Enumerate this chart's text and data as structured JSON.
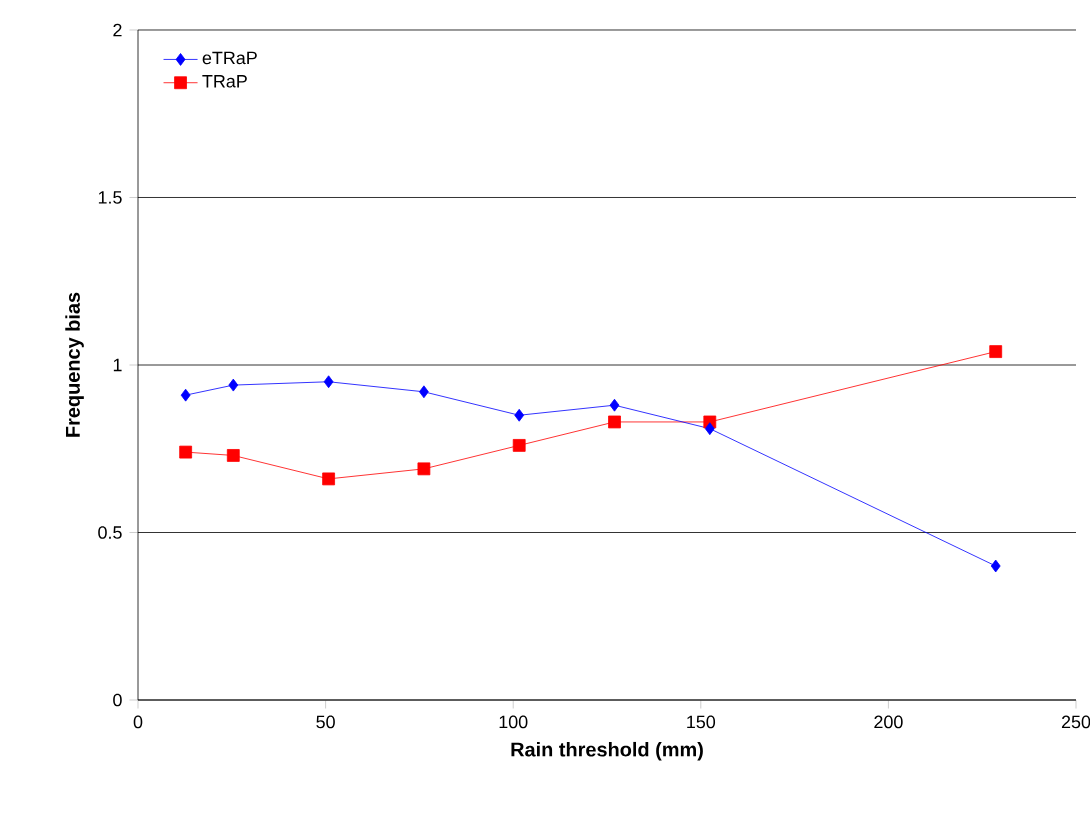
{
  "chart_data": {
    "type": "line",
    "xlabel": "Rain threshold (mm)",
    "ylabel": "Frequency bias",
    "x": [
      12.7,
      25.4,
      50.8,
      76.2,
      101.6,
      127,
      152.4,
      228.6
    ],
    "series": [
      {
        "name": "eTRaP",
        "color": "#0000ff",
        "marker": "diamond",
        "values": [
          0.91,
          0.94,
          0.95,
          0.92,
          0.85,
          0.88,
          0.81,
          0.4
        ]
      },
      {
        "name": "TRaP",
        "color": "#ff0000",
        "marker": "square",
        "values": [
          0.74,
          0.73,
          0.66,
          0.69,
          0.76,
          0.83,
          0.83,
          1.04
        ]
      }
    ],
    "xlim": [
      0,
      250
    ],
    "xticks": [
      0,
      50,
      100,
      150,
      200,
      250
    ],
    "ylim": [
      0,
      2
    ],
    "yticks": [
      0,
      0.5,
      1,
      1.5,
      2
    ],
    "grid": "y",
    "legend": "top left",
    "line_style": "solid"
  }
}
